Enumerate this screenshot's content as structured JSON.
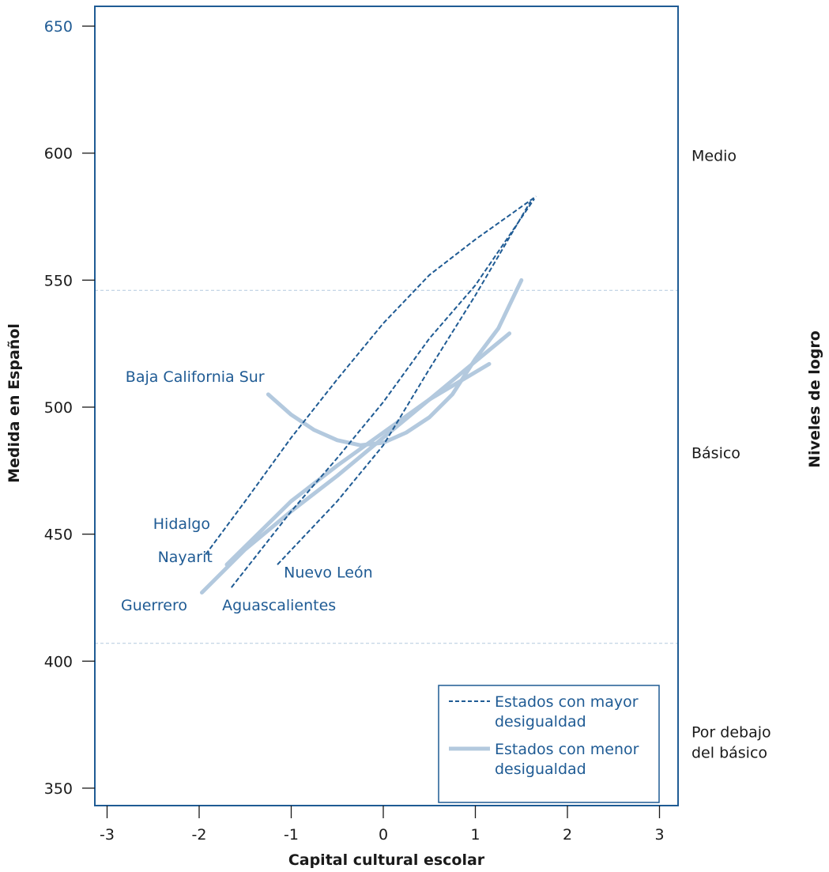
{
  "chart_data": {
    "type": "line",
    "title": "",
    "xlabel": "Capital cultural escolar",
    "ylabel": "Medida en Español",
    "right_axis_label": "Niveles de logro",
    "xlim": [
      -3.1,
      3.2
    ],
    "ylim": [
      343,
      660
    ],
    "x_ticks": [
      {
        "value": -3,
        "label": "-3"
      },
      {
        "value": -2,
        "label": "-2"
      },
      {
        "value": -1,
        "label": "-1"
      },
      {
        "value": 0,
        "label": "0"
      },
      {
        "value": 1,
        "label": "1"
      },
      {
        "value": 2,
        "label": "2"
      },
      {
        "value": 3,
        "label": "3"
      }
    ],
    "y_ticks": [
      {
        "value": 350,
        "label": "350"
      },
      {
        "value": 400,
        "label": "400"
      },
      {
        "value": 450,
        "label": "450"
      },
      {
        "value": 500,
        "label": "500"
      },
      {
        "value": 550,
        "label": "550"
      },
      {
        "value": 600,
        "label": "600"
      },
      {
        "value": 650,
        "label": "650"
      }
    ],
    "cut_lines": [
      546,
      407
    ],
    "levels": [
      {
        "label": "Medio",
        "y_value": 597
      },
      {
        "label": "Básico",
        "y_value": 480
      },
      {
        "label_lines": [
          "Por debajo",
          "del básico"
        ],
        "y_value": 370
      }
    ],
    "series": [
      {
        "name": "Hidalgo",
        "group": "mayor",
        "label_at": [
          -2.5,
          452
        ],
        "points": [
          [
            -1.93,
            442
          ],
          [
            -1.5,
            463
          ],
          [
            -1.0,
            488
          ],
          [
            -0.5,
            511
          ],
          [
            0.0,
            533
          ],
          [
            0.5,
            552
          ],
          [
            1.0,
            566
          ],
          [
            1.66,
            583
          ]
        ]
      },
      {
        "name": "Aguascalientes",
        "group": "mayor",
        "label_at": [
          -1.75,
          420
        ],
        "points": [
          [
            -1.65,
            429
          ],
          [
            -1.0,
            459
          ],
          [
            -0.5,
            480
          ],
          [
            0.0,
            502
          ],
          [
            0.5,
            527
          ],
          [
            1.0,
            548
          ],
          [
            1.64,
            582
          ]
        ]
      },
      {
        "name": "Nuevo León",
        "group": "mayor",
        "label_at": [
          -1.08,
          433
        ],
        "points": [
          [
            -1.15,
            438
          ],
          [
            -0.5,
            463
          ],
          [
            0.0,
            485
          ],
          [
            0.5,
            515
          ],
          [
            1.0,
            544
          ],
          [
            1.6,
            581
          ]
        ]
      },
      {
        "name": "Baja California Sur",
        "group": "menor",
        "label_at": [
          -2.8,
          510
        ],
        "points": [
          [
            -1.25,
            505
          ],
          [
            -1.0,
            497
          ],
          [
            -0.75,
            491
          ],
          [
            -0.5,
            487
          ],
          [
            -0.25,
            485
          ],
          [
            0.0,
            486
          ],
          [
            0.25,
            490
          ],
          [
            0.5,
            496
          ],
          [
            0.75,
            505
          ],
          [
            1.0,
            519
          ],
          [
            1.25,
            531
          ],
          [
            1.5,
            550
          ]
        ]
      },
      {
        "name": "Nayarit",
        "group": "menor",
        "label_at": [
          -2.45,
          439
        ],
        "points": [
          [
            -1.7,
            438
          ],
          [
            -1.0,
            463
          ],
          [
            -0.5,
            477
          ],
          [
            0.0,
            490
          ],
          [
            0.5,
            503
          ],
          [
            1.15,
            517
          ]
        ]
      },
      {
        "name": "Guerrero",
        "group": "menor",
        "label_at": [
          -2.85,
          420
        ],
        "points": [
          [
            -1.97,
            427
          ],
          [
            -1.5,
            444
          ],
          [
            -1.0,
            459
          ],
          [
            -0.5,
            473
          ],
          [
            0.0,
            488
          ],
          [
            0.5,
            503
          ],
          [
            1.0,
            518
          ],
          [
            1.37,
            529
          ]
        ]
      }
    ],
    "legend": {
      "position": "bottom-right",
      "entries": [
        {
          "group": "mayor",
          "lines": [
            "Estados con mayor",
            "desigualdad"
          ],
          "style": "dashed"
        },
        {
          "group": "menor",
          "lines": [
            "Estados con menor",
            "desigualdad"
          ],
          "style": "solid"
        }
      ]
    },
    "grid": false
  },
  "colors": {
    "frame": "#1f5b94",
    "mayor": "#1f5b94",
    "menor": "#b3c9de",
    "cut_line": "#b3c9de",
    "text": "#1a1a1a",
    "accent_text": "#1f5b94"
  }
}
